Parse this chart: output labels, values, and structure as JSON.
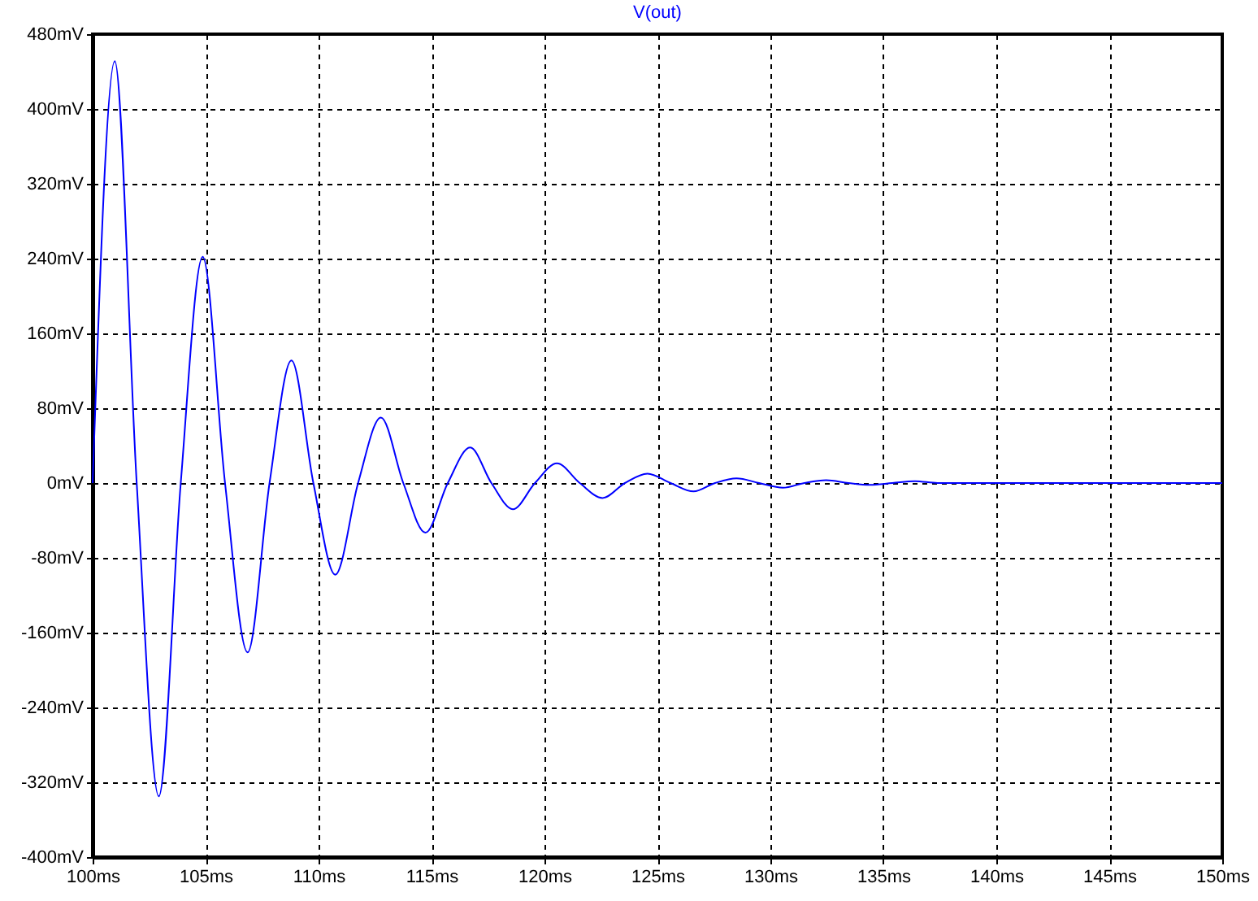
{
  "chart_data": {
    "type": "line",
    "title": "V(out)",
    "x": [
      100,
      100.98,
      101.95,
      102.93,
      103.9,
      104.87,
      105.86,
      106.86,
      107.83,
      108.8,
      109.77,
      110.74,
      111.75,
      112.76,
      113.75,
      114.73,
      115.72,
      116.71,
      117.65,
      118.6,
      119.58,
      120.55,
      121.56,
      122.57,
      123.56,
      124.56,
      125.58,
      126.6,
      127.55,
      128.5,
      129.5,
      130.55,
      131.5,
      132.47,
      133.45,
      134.4,
      135.4,
      136.4,
      137.4,
      150
    ],
    "series": [
      {
        "color": "#0000ff",
        "values": [
          0,
          451,
          0,
          -335,
          0,
          242,
          0,
          -181,
          0,
          131,
          0,
          -98,
          0,
          70,
          0,
          -53,
          0,
          38,
          0,
          -28,
          0,
          21,
          0,
          -16,
          0,
          10,
          0,
          -9,
          0,
          5,
          0,
          -5,
          0,
          3,
          0,
          -2,
          0,
          2,
          0,
          0
        ]
      }
    ],
    "xlim": [
      100,
      150
    ],
    "xticks": [
      {
        "value": 100,
        "label": "100ms"
      },
      {
        "value": 105,
        "label": "105ms"
      },
      {
        "value": 110,
        "label": "110ms"
      },
      {
        "value": 115,
        "label": "115ms"
      },
      {
        "value": 120,
        "label": "120ms"
      },
      {
        "value": 125,
        "label": "125ms"
      },
      {
        "value": 130,
        "label": "130ms"
      },
      {
        "value": 135,
        "label": "135ms"
      },
      {
        "value": 140,
        "label": "140ms"
      },
      {
        "value": 145,
        "label": "145ms"
      },
      {
        "value": 150,
        "label": "150ms"
      }
    ],
    "ylim": [
      -400,
      480
    ],
    "yticks": [
      {
        "value": -400,
        "label": "-400mV"
      },
      {
        "value": -320,
        "label": "-320mV"
      },
      {
        "value": -240,
        "label": "-240mV"
      },
      {
        "value": -160,
        "label": "-160mV"
      },
      {
        "value": -80,
        "label": "-80mV"
      },
      {
        "value": 0,
        "label": "0mV"
      },
      {
        "value": 80,
        "label": "80mV"
      },
      {
        "value": 160,
        "label": "160mV"
      },
      {
        "value": 240,
        "label": "240mV"
      },
      {
        "value": 320,
        "label": "320mV"
      },
      {
        "value": 400,
        "label": "400mV"
      },
      {
        "value": 480,
        "label": "480mV"
      }
    ],
    "grid": true,
    "line_style": "solid"
  }
}
